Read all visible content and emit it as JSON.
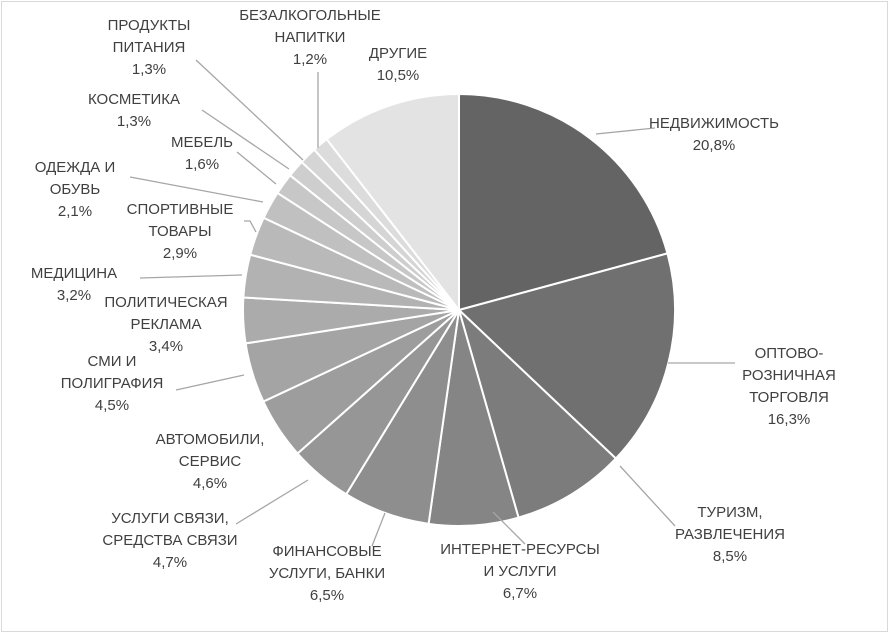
{
  "chart_data": {
    "type": "pie",
    "title": "",
    "start_angle_deg": 0,
    "direction": "clockwise",
    "slices": [
      {
        "lines": [
          "НЕДВИЖИМОСТЬ"
        ],
        "pct": "20,8%",
        "value": 20.8,
        "color": "#646464"
      },
      {
        "lines": [
          "ОПТОВО-",
          "РОЗНИЧНАЯ",
          "ТОРГОВЛЯ"
        ],
        "pct": "16,3%",
        "value": 16.3,
        "color": "#707070"
      },
      {
        "lines": [
          "ТУРИЗМ,",
          "РАЗВЛЕЧЕНИЯ"
        ],
        "pct": "8,5%",
        "value": 8.5,
        "color": "#7c7c7c"
      },
      {
        "lines": [
          "ИНТЕРНЕТ-РЕСУРСЫ",
          "И УСЛУГИ"
        ],
        "pct": "6,7%",
        "value": 6.7,
        "color": "#858585"
      },
      {
        "lines": [
          "ФИНАНСОВЫЕ",
          "УСЛУГИ, БАНКИ"
        ],
        "pct": "6,5%",
        "value": 6.5,
        "color": "#8e8e8e"
      },
      {
        "lines": [
          "УСЛУГИ СВЯЗИ,",
          "СРЕДСТВА СВЯЗИ"
        ],
        "pct": "4,7%",
        "value": 4.7,
        "color": "#969696"
      },
      {
        "lines": [
          "АВТОМОБИЛИ,",
          "СЕРВИС"
        ],
        "pct": "4,6%",
        "value": 4.6,
        "color": "#9d9d9d"
      },
      {
        "lines": [
          "СМИ И",
          "ПОЛИГРАФИЯ"
        ],
        "pct": "4,5%",
        "value": 4.5,
        "color": "#a4a4a4"
      },
      {
        "lines": [
          "ПОЛИТИЧЕСКАЯ",
          "РЕКЛАМА"
        ],
        "pct": "3,4%",
        "value": 3.4,
        "color": "#ababab"
      },
      {
        "lines": [
          "МЕДИЦИНА"
        ],
        "pct": "3,2%",
        "value": 3.2,
        "color": "#b2b2b2"
      },
      {
        "lines": [
          "СПОРТИВНЫЕ",
          "ТОВАРЫ"
        ],
        "pct": "2,9%",
        "value": 2.9,
        "color": "#b9b9b9"
      },
      {
        "lines": [
          "ОДЕЖДА И",
          "ОБУВЬ"
        ],
        "pct": "2,1%",
        "value": 2.1,
        "color": "#c0c0c0"
      },
      {
        "lines": [
          "МЕБЕЛЬ"
        ],
        "pct": "1,6%",
        "value": 1.6,
        "color": "#c7c7c7"
      },
      {
        "lines": [
          "КОСМЕТИКА"
        ],
        "pct": "1,3%",
        "value": 1.3,
        "color": "#cecece"
      },
      {
        "lines": [
          "ПРОДУКТЫ",
          "ПИТАНИЯ"
        ],
        "pct": "1,3%",
        "value": 1.3,
        "color": "#d5d5d5"
      },
      {
        "lines": [
          "БЕЗАЛКОГОЛЬНЫЕ",
          "НАПИТКИ"
        ],
        "pct": "1,2%",
        "value": 1.2,
        "color": "#dcdcdc"
      },
      {
        "lines": [
          "ДРУГИЕ"
        ],
        "pct": "10,5%",
        "value": 10.5,
        "color": "#e3e3e3"
      }
    ],
    "legend": "none",
    "colors": {
      "leader": "#a6a6a6",
      "text": "#404040",
      "slice_border": "#ffffff",
      "frame": "#d9d9d9"
    }
  }
}
